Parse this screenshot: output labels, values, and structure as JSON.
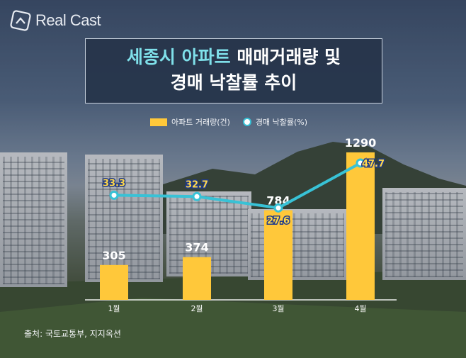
{
  "brand": {
    "name": "Real Cast"
  },
  "title": {
    "line1_highlight": "세종시 아파트",
    "line1_rest": " 매매거래량 및",
    "line2": "경매 낙찰률 추이"
  },
  "legend": {
    "bar": "아파트 거래량(건)",
    "line": "경매 낙찰률(%)"
  },
  "source": "출처: 국토교통부, 지지옥션",
  "colors": {
    "bar": "#ffc83a",
    "line": "#38c2d6",
    "line_label": "#ffd84a",
    "title_highlight": "#7fe0ea"
  },
  "chart_data": {
    "type": "bar+line",
    "categories": [
      "1월",
      "2월",
      "3월",
      "4월"
    ],
    "series": [
      {
        "name": "아파트 거래량(건)",
        "type": "bar",
        "values": [
          305,
          374,
          784,
          1290
        ]
      },
      {
        "name": "경매 낙찰률(%)",
        "type": "line",
        "values": [
          33.3,
          32.7,
          27.6,
          47.7
        ]
      }
    ],
    "grid": false,
    "legend_position": "top"
  }
}
